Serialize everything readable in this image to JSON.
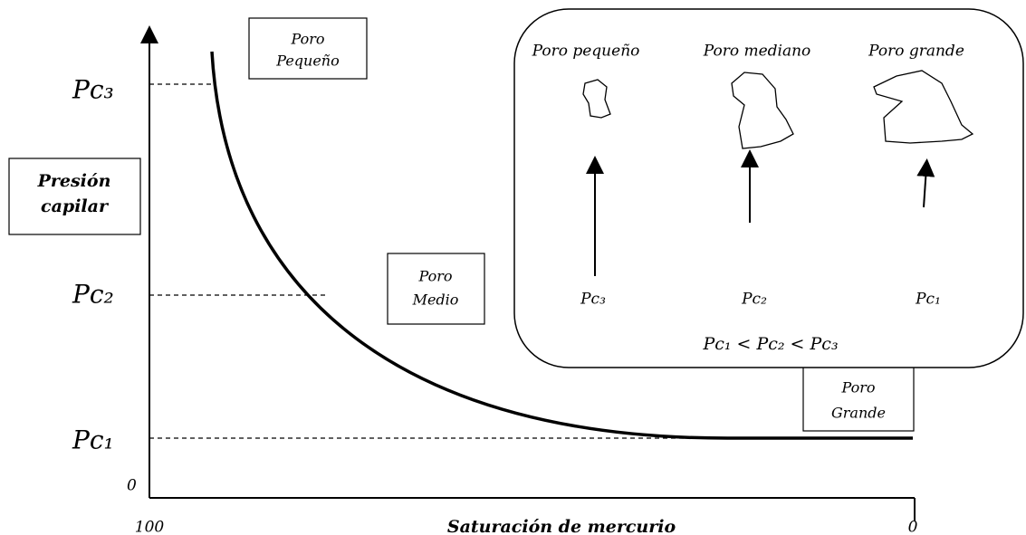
{
  "y_axis": {
    "title": [
      "Presión",
      "capilar"
    ],
    "origin": "0",
    "levels": [
      "Pc₃",
      "Pc₂",
      "Pc₁"
    ]
  },
  "x_axis": {
    "title": "Saturación de mercurio",
    "start": "100",
    "end": "0"
  },
  "curve_labels": [
    [
      "Poro",
      "Pequeño"
    ],
    [
      "Poro",
      "Medio"
    ],
    [
      "Poro",
      "Grande"
    ]
  ],
  "inset": {
    "pores": [
      {
        "label": "Poro pequeño",
        "pressure": "Pc₃"
      },
      {
        "label": "Poro mediano",
        "pressure": "Pc₂"
      },
      {
        "label": "Poro grande",
        "pressure": "Pc₁"
      }
    ],
    "relation": "Pc₁ < Pc₂ < Pc₃"
  }
}
